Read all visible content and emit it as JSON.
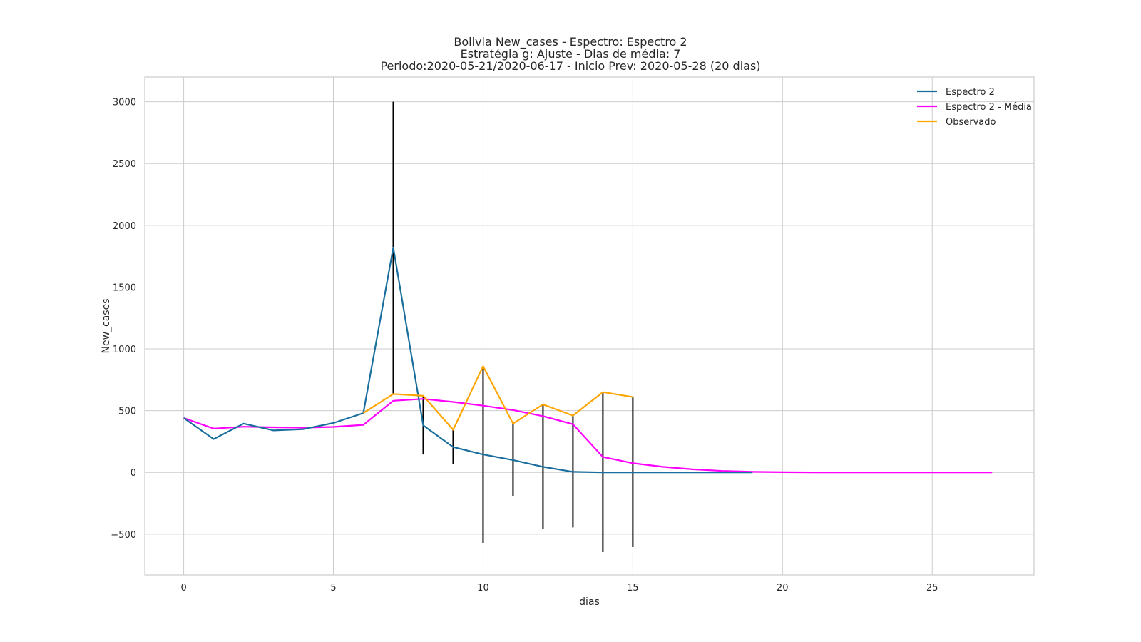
{
  "chart_data": {
    "type": "line",
    "title_lines": [
      "Bolivia New_cases - Espectro: Espectro 2",
      "Estratégia g: Ajuste - Dias de média: 7",
      "Periodo:2020-05-21/2020-06-17 - Inicio Prev: 2020-05-28 (20 dias)"
    ],
    "xlabel": "dias",
    "ylabel": "New_cases",
    "xlim": [
      -1.3,
      28.4
    ],
    "ylim": [
      -830,
      3200
    ],
    "x_ticks": [
      0,
      5,
      10,
      15,
      20,
      25
    ],
    "y_ticks": [
      -500,
      0,
      500,
      1000,
      1500,
      2000,
      2500,
      3000
    ],
    "y_tick_labels": [
      "−500",
      "0",
      "500",
      "1000",
      "1500",
      "2000",
      "2500",
      "3000"
    ],
    "grid": true,
    "legend_position": "top-right",
    "series": [
      {
        "name": "Espectro 2",
        "color": "#1a6e9e",
        "x": [
          0,
          1,
          2,
          3,
          4,
          5,
          6,
          7,
          8,
          9,
          10,
          11,
          12,
          13,
          14,
          15,
          16,
          17,
          18,
          19
        ],
        "values": [
          440,
          270,
          395,
          340,
          350,
          400,
          480,
          1820,
          380,
          205,
          145,
          100,
          45,
          5,
          0,
          0,
          0,
          0,
          0,
          0
        ]
      },
      {
        "name": "Espectro 2 - Média",
        "color": "#ff00ff",
        "x": [
          0,
          1,
          2,
          3,
          4,
          5,
          6,
          7,
          8,
          9,
          10,
          11,
          12,
          13,
          14,
          15,
          16,
          17,
          18,
          19,
          20,
          21,
          22,
          23,
          24,
          25,
          26,
          27
        ],
        "values": [
          440,
          355,
          370,
          365,
          362,
          368,
          385,
          580,
          595,
          570,
          540,
          505,
          455,
          390,
          125,
          75,
          45,
          25,
          12,
          5,
          2,
          1,
          0,
          0,
          0,
          0,
          0,
          0
        ]
      },
      {
        "name": "Observado",
        "color": "#ffa500",
        "x": [
          6,
          7,
          8,
          9,
          10,
          11,
          12,
          13,
          14,
          15
        ],
        "values": [
          480,
          635,
          620,
          345,
          860,
          395,
          550,
          460,
          650,
          610
        ]
      }
    ],
    "error_bars": {
      "color": "#000000",
      "x": [
        7,
        8,
        9,
        10,
        11,
        12,
        13,
        14,
        15
      ],
      "low": [
        635,
        145,
        65,
        -570,
        -195,
        -455,
        -445,
        -645,
        -605
      ],
      "high": [
        3000,
        615,
        345,
        860,
        395,
        550,
        460,
        650,
        610
      ]
    }
  }
}
